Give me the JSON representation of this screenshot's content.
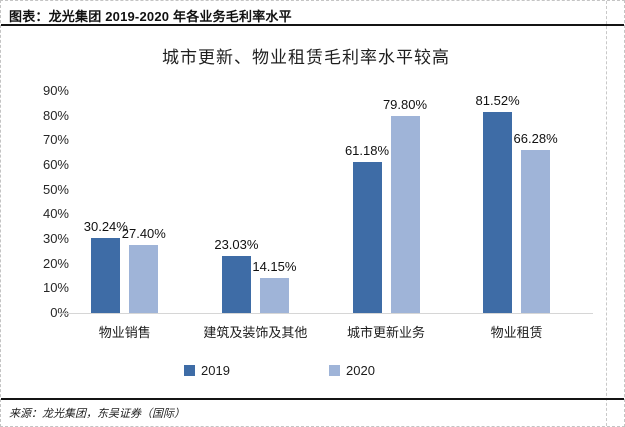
{
  "header": {
    "title": "图表：龙光集团 2019-2020 年各业务毛利率水平"
  },
  "chart_data": {
    "type": "bar",
    "title": "城市更新、物业租赁毛利率水平较高",
    "categories": [
      "物业销售",
      "建筑及装饰及其他",
      "城市更新业务",
      "物业租赁"
    ],
    "series": [
      {
        "name": "2019",
        "color": "#3E6CA6",
        "values": [
          30.24,
          23.03,
          61.18,
          81.52
        ],
        "labels": [
          "30.24%",
          "23.03%",
          "61.18%",
          "81.52%"
        ]
      },
      {
        "name": "2020",
        "color": "#9FB4D8",
        "values": [
          27.4,
          14.15,
          79.8,
          66.28
        ],
        "labels": [
          "27.40%",
          "14.15%",
          "79.80%",
          "66.28%"
        ]
      }
    ],
    "y_ticks": [
      "0%",
      "10%",
      "20%",
      "30%",
      "40%",
      "50%",
      "60%",
      "70%",
      "80%",
      "90%"
    ],
    "ylim": [
      0,
      90
    ],
    "grid": false,
    "legend_position": "bottom",
    "axis_color": "#d6d6d6"
  },
  "footer": {
    "source": "来源：龙光集团，东吴证券（国际）"
  }
}
